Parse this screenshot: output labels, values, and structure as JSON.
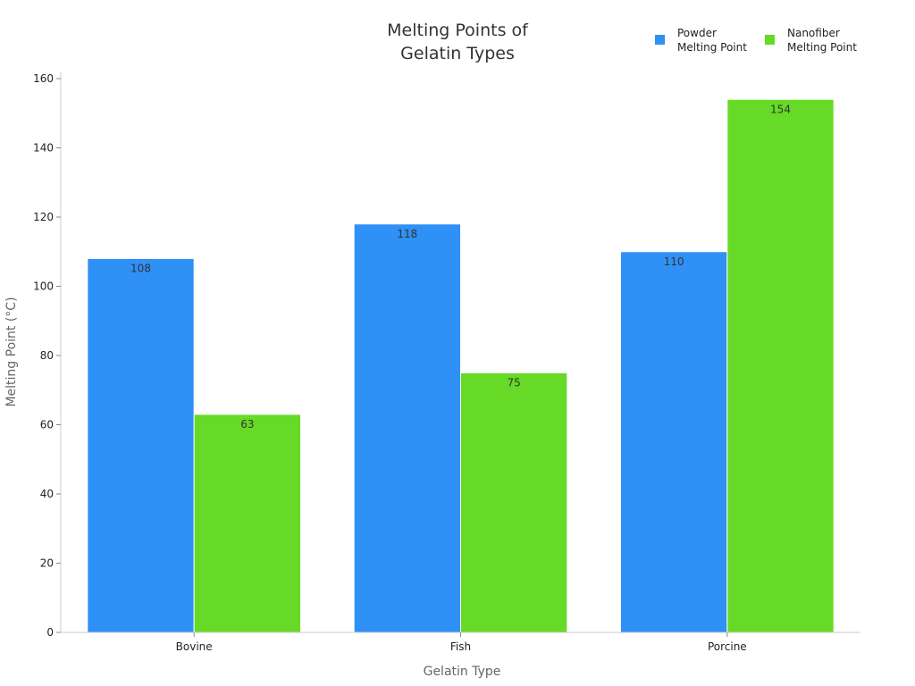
{
  "chart_data": {
    "type": "bar",
    "title_lines": [
      "Melting Points of",
      "Gelatin Types"
    ],
    "xlabel": "Gelatin Type",
    "ylabel": "Melting Point (°C)",
    "categories": [
      "Bovine",
      "Fish",
      "Porcine"
    ],
    "series": [
      {
        "name_lines": [
          "Powder",
          "Melting Point"
        ],
        "color": "#2f90f6",
        "values": [
          108,
          118,
          110
        ]
      },
      {
        "name_lines": [
          "Nanofiber",
          "Melting Point"
        ],
        "color": "#66da26",
        "values": [
          63,
          75,
          154
        ]
      }
    ],
    "ylim": [
      0,
      160
    ],
    "yticks": [
      0,
      20,
      40,
      60,
      80,
      100,
      120,
      140,
      160
    ],
    "grid": false,
    "legend_position": "top-right"
  }
}
